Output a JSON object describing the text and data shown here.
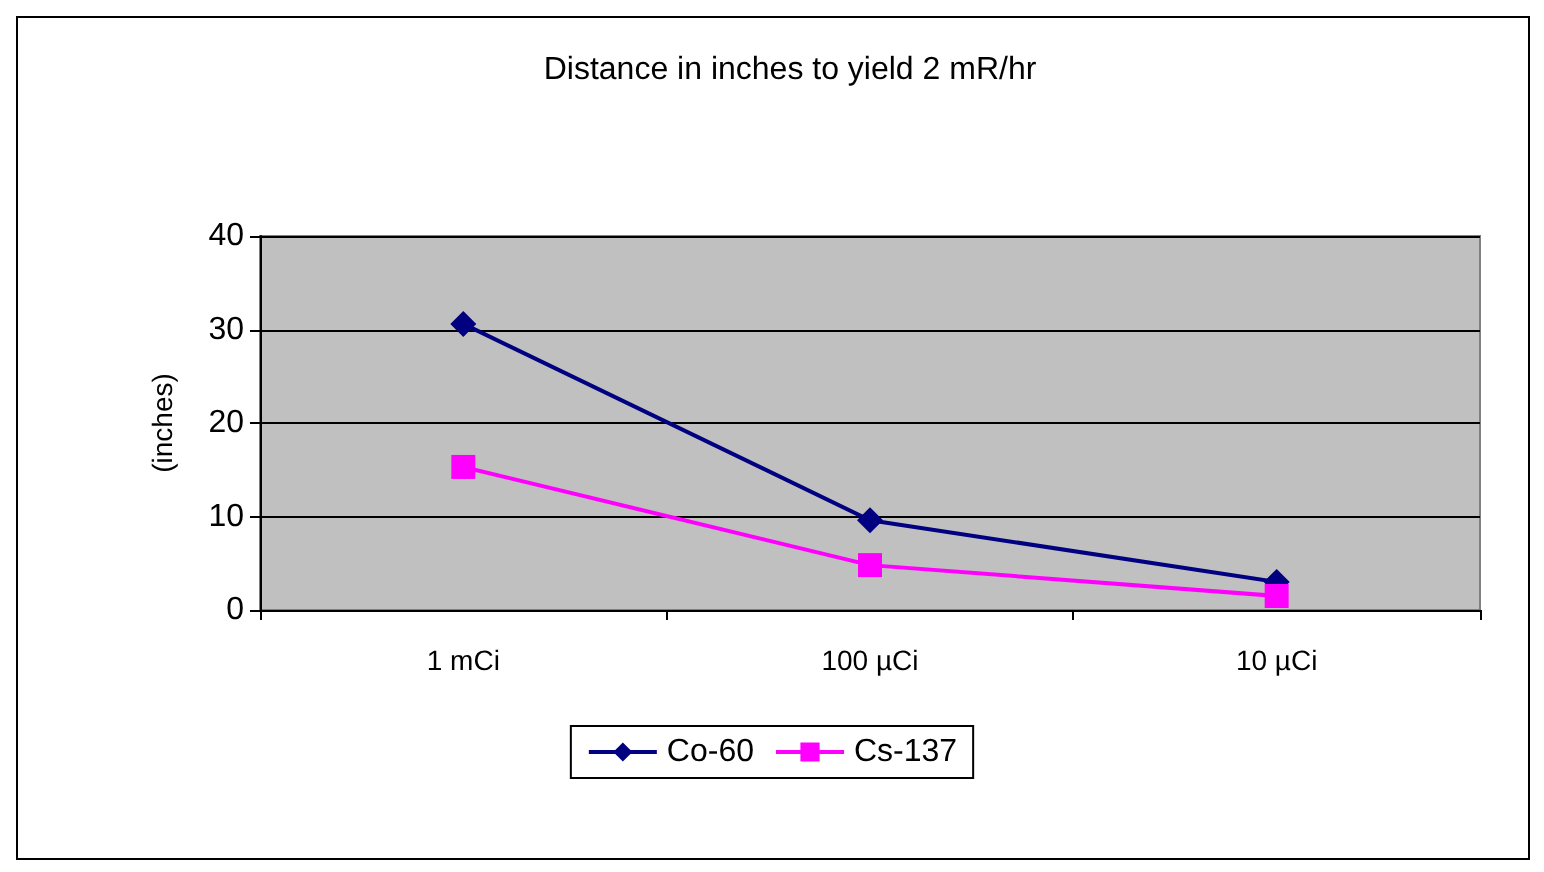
{
  "chart_data": {
    "type": "line",
    "title": "Distance in inches to yield 2 mR/hr",
    "ylabel": "(inches)",
    "categories": [
      "1 mCi",
      "100 µCi",
      "10 µCi"
    ],
    "series": [
      {
        "name": "Co-60",
        "color": "#000080",
        "marker": "diamond",
        "values": [
          30.6,
          9.6,
          3.0
        ]
      },
      {
        "name": "Cs-137",
        "color": "#ff00ff",
        "marker": "square",
        "values": [
          15.3,
          4.8,
          1.5
        ]
      }
    ],
    "ylim": [
      0,
      40
    ],
    "yticks": [
      0,
      10,
      20,
      30,
      40
    ],
    "grid": "y",
    "legend": "bottom"
  }
}
